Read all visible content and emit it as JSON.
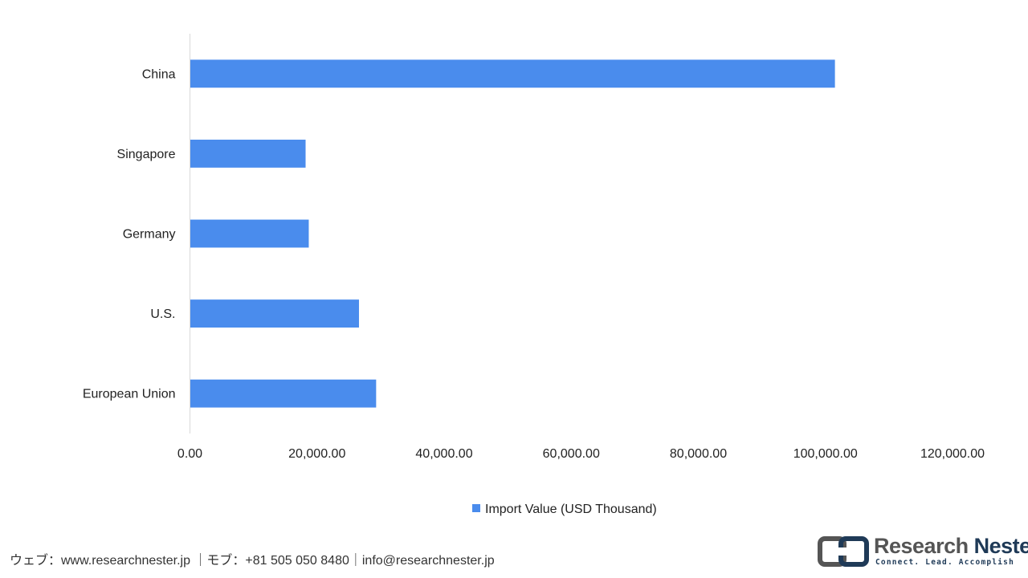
{
  "chart_data": {
    "type": "bar",
    "orientation": "horizontal",
    "categories": [
      "China",
      "Singapore",
      "Germany",
      "U.S.",
      "European Union"
    ],
    "series": [
      {
        "name": "Import Value (USD Thousand)",
        "values": [
          101500,
          18200,
          18700,
          26600,
          29300
        ],
        "color": "#4a8ced"
      }
    ],
    "xlim": [
      0,
      120000
    ],
    "x_ticks": [
      0,
      20000,
      40000,
      60000,
      80000,
      100000,
      120000
    ],
    "x_tick_labels": [
      "0.00",
      "20,000.00",
      "40,000.00",
      "60,000.00",
      "80,000.00",
      "100,000.00",
      "120,000.00"
    ],
    "grid": false,
    "legend_position": "bottom"
  },
  "footer": {
    "contact": "ウェブ：www.researchnester.jp ｜モブ：+81 505 050 8480｜info@researchnester.jp"
  },
  "logo": {
    "name_part1": "Research ",
    "name_part2": "Nester",
    "tagline": "Connect. Lead. Accomplish"
  }
}
